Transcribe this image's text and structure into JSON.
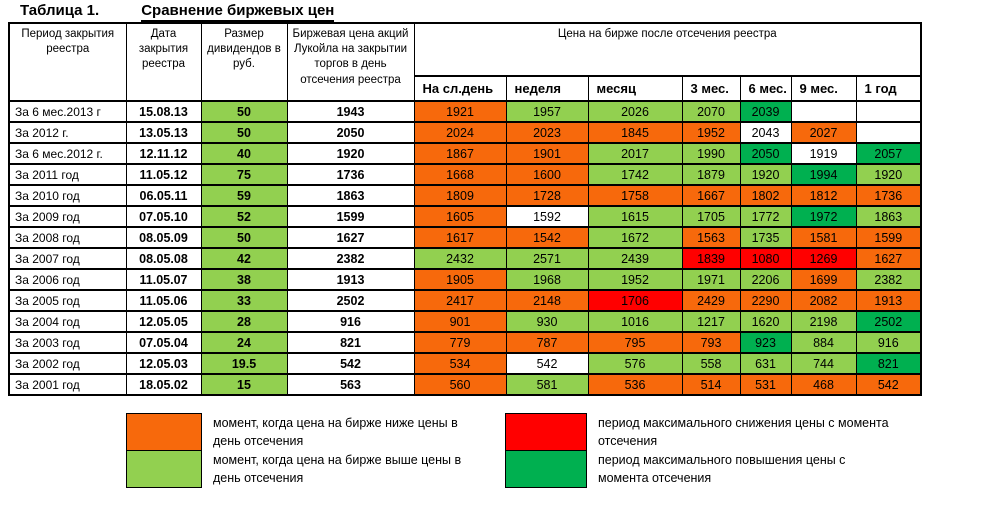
{
  "title": {
    "label": "Таблица 1.",
    "heading": "Сравнение биржевых цен"
  },
  "colors": {
    "orange": "#F7690C",
    "light_green": "#92D050",
    "dark_green": "#00B050",
    "red": "#FF0000",
    "white": "#FFFFFF"
  },
  "table": {
    "headers": {
      "period": "Период закрытия реестра",
      "date": "Дата закрытия реестра",
      "dividend": "Размер дивидендов в руб.",
      "price": "Биржевая цена акций Лукойла на закрытии торгов в день отсечения реестра",
      "after": "Цена  на бирже после отсечения реестра",
      "periods": [
        "На сл.день",
        "неделя",
        "месяц",
        "3 мес.",
        "6 мес.",
        "9 мес.",
        "1 год"
      ]
    },
    "rows": [
      {
        "period": "За 6 мес.2013 г",
        "date": "15.08.13",
        "dividend": "50",
        "price": "1943",
        "cells": [
          {
            "v": "1921",
            "c": "orange"
          },
          {
            "v": "1957",
            "c": "light_green"
          },
          {
            "v": "2026",
            "c": "light_green"
          },
          {
            "v": "2070",
            "c": "light_green"
          },
          {
            "v": "2039",
            "c": "dark_green"
          },
          {
            "v": "",
            "c": "white"
          },
          {
            "v": "",
            "c": "white"
          }
        ]
      },
      {
        "period": "За 2012 г.",
        "date": "13.05.13",
        "dividend": "50",
        "price": "2050",
        "cells": [
          {
            "v": "2024",
            "c": "orange"
          },
          {
            "v": "2023",
            "c": "orange"
          },
          {
            "v": "1845",
            "c": "orange"
          },
          {
            "v": "1952",
            "c": "orange"
          },
          {
            "v": "2043",
            "c": "white"
          },
          {
            "v": "2027",
            "c": "orange"
          },
          {
            "v": "",
            "c": "white"
          }
        ]
      },
      {
        "period": "За 6 мес.2012 г.",
        "date": "12.11.12",
        "dividend": "40",
        "price": "1920",
        "cells": [
          {
            "v": "1867",
            "c": "orange"
          },
          {
            "v": "1901",
            "c": "orange"
          },
          {
            "v": "2017",
            "c": "light_green"
          },
          {
            "v": "1990",
            "c": "light_green"
          },
          {
            "v": "2050",
            "c": "dark_green"
          },
          {
            "v": "1919",
            "c": "white"
          },
          {
            "v": "2057",
            "c": "dark_green"
          }
        ]
      },
      {
        "period": "За 2011 год",
        "date": "11.05.12",
        "dividend": "75",
        "price": "1736",
        "cells": [
          {
            "v": "1668",
            "c": "orange"
          },
          {
            "v": "1600",
            "c": "orange"
          },
          {
            "v": "1742",
            "c": "light_green"
          },
          {
            "v": "1879",
            "c": "light_green"
          },
          {
            "v": "1920",
            "c": "light_green"
          },
          {
            "v": "1994",
            "c": "dark_green"
          },
          {
            "v": "1920",
            "c": "light_green"
          }
        ]
      },
      {
        "period": "За  2010 год",
        "date": "06.05.11",
        "dividend": "59",
        "price": "1863",
        "cells": [
          {
            "v": "1809",
            "c": "orange"
          },
          {
            "v": "1728",
            "c": "orange"
          },
          {
            "v": "1758",
            "c": "orange"
          },
          {
            "v": "1667",
            "c": "orange"
          },
          {
            "v": "1802",
            "c": "orange"
          },
          {
            "v": "1812",
            "c": "orange"
          },
          {
            "v": "1736",
            "c": "orange"
          }
        ]
      },
      {
        "period": "За  2009 год",
        "date": "07.05.10",
        "dividend": "52",
        "price": "1599",
        "cells": [
          {
            "v": "1605",
            "c": "orange"
          },
          {
            "v": "1592",
            "c": "white"
          },
          {
            "v": "1615",
            "c": "light_green"
          },
          {
            "v": "1705",
            "c": "light_green"
          },
          {
            "v": "1772",
            "c": "light_green"
          },
          {
            "v": "1972",
            "c": "dark_green"
          },
          {
            "v": "1863",
            "c": "light_green"
          }
        ]
      },
      {
        "period": "За  2008 год",
        "date": "08.05.09",
        "dividend": "50",
        "price": "1627",
        "cells": [
          {
            "v": "1617",
            "c": "orange"
          },
          {
            "v": "1542",
            "c": "orange"
          },
          {
            "v": "1672",
            "c": "light_green"
          },
          {
            "v": "1563",
            "c": "orange"
          },
          {
            "v": "1735",
            "c": "light_green"
          },
          {
            "v": "1581",
            "c": "orange"
          },
          {
            "v": "1599",
            "c": "orange"
          }
        ]
      },
      {
        "period": "За  2007 год",
        "date": "08.05.08",
        "dividend": "42",
        "price": "2382",
        "cells": [
          {
            "v": "2432",
            "c": "light_green"
          },
          {
            "v": "2571",
            "c": "light_green"
          },
          {
            "v": "2439",
            "c": "light_green"
          },
          {
            "v": "1839",
            "c": "red"
          },
          {
            "v": "1080",
            "c": "red"
          },
          {
            "v": "1269",
            "c": "red"
          },
          {
            "v": "1627",
            "c": "orange"
          }
        ]
      },
      {
        "period": "За 2006 год",
        "date": "11.05.07",
        "dividend": "38",
        "price": "1913",
        "cells": [
          {
            "v": "1905",
            "c": "orange"
          },
          {
            "v": "1968",
            "c": "light_green"
          },
          {
            "v": "1952",
            "c": "light_green"
          },
          {
            "v": "1971",
            "c": "light_green"
          },
          {
            "v": "2206",
            "c": "light_green"
          },
          {
            "v": "1699",
            "c": "orange"
          },
          {
            "v": "2382",
            "c": "light_green"
          }
        ]
      },
      {
        "period": "За 2005 год",
        "date": "11.05.06",
        "dividend": "33",
        "price": "2502",
        "cells": [
          {
            "v": "2417",
            "c": "orange"
          },
          {
            "v": "2148",
            "c": "orange"
          },
          {
            "v": "1706",
            "c": "red"
          },
          {
            "v": "2429",
            "c": "orange"
          },
          {
            "v": "2290",
            "c": "orange"
          },
          {
            "v": "2082",
            "c": "orange"
          },
          {
            "v": "1913",
            "c": "orange"
          }
        ]
      },
      {
        "period": "За 2004 год",
        "date": "12.05.05",
        "dividend": "28",
        "price": "916",
        "cells": [
          {
            "v": "901",
            "c": "orange"
          },
          {
            "v": "930",
            "c": "light_green"
          },
          {
            "v": "1016",
            "c": "light_green"
          },
          {
            "v": "1217",
            "c": "light_green"
          },
          {
            "v": "1620",
            "c": "light_green"
          },
          {
            "v": "2198",
            "c": "light_green"
          },
          {
            "v": "2502",
            "c": "dark_green"
          }
        ]
      },
      {
        "period": "За 2003 год",
        "date": "07.05.04",
        "dividend": "24",
        "price": "821",
        "cells": [
          {
            "v": "779",
            "c": "orange"
          },
          {
            "v": "787",
            "c": "orange"
          },
          {
            "v": "795",
            "c": "orange"
          },
          {
            "v": "793",
            "c": "orange"
          },
          {
            "v": "923",
            "c": "dark_green"
          },
          {
            "v": "884",
            "c": "light_green"
          },
          {
            "v": "916",
            "c": "light_green"
          }
        ]
      },
      {
        "period": "За 2002 год",
        "date": "12.05.03",
        "dividend": "19.5",
        "price": "542",
        "cells": [
          {
            "v": "534",
            "c": "orange"
          },
          {
            "v": "542",
            "c": "white"
          },
          {
            "v": "576",
            "c": "light_green"
          },
          {
            "v": "558",
            "c": "light_green"
          },
          {
            "v": "631",
            "c": "light_green"
          },
          {
            "v": "744",
            "c": "light_green"
          },
          {
            "v": "821",
            "c": "dark_green"
          }
        ]
      },
      {
        "period": "За 2001 год",
        "date": "18.05.02",
        "dividend": "15",
        "price": "563",
        "cells": [
          {
            "v": "560",
            "c": "orange"
          },
          {
            "v": "581",
            "c": "light_green"
          },
          {
            "v": "536",
            "c": "orange"
          },
          {
            "v": "514",
            "c": "orange"
          },
          {
            "v": "531",
            "c": "orange"
          },
          {
            "v": "468",
            "c": "orange"
          },
          {
            "v": "542",
            "c": "orange"
          }
        ]
      }
    ]
  },
  "legend": {
    "left": [
      {
        "color": "orange",
        "text": "момент, когда цена на бирже ниже цены в день отсечения"
      },
      {
        "color": "light_green",
        "text": "момент, когда цена на бирже выше цены в день отсечения"
      }
    ],
    "right": [
      {
        "color": "red",
        "text": "период максимального снижения цены с момента отсечения"
      },
      {
        "color": "dark_green",
        "text": "период максимального повышения цены с момента отсечения"
      }
    ]
  }
}
